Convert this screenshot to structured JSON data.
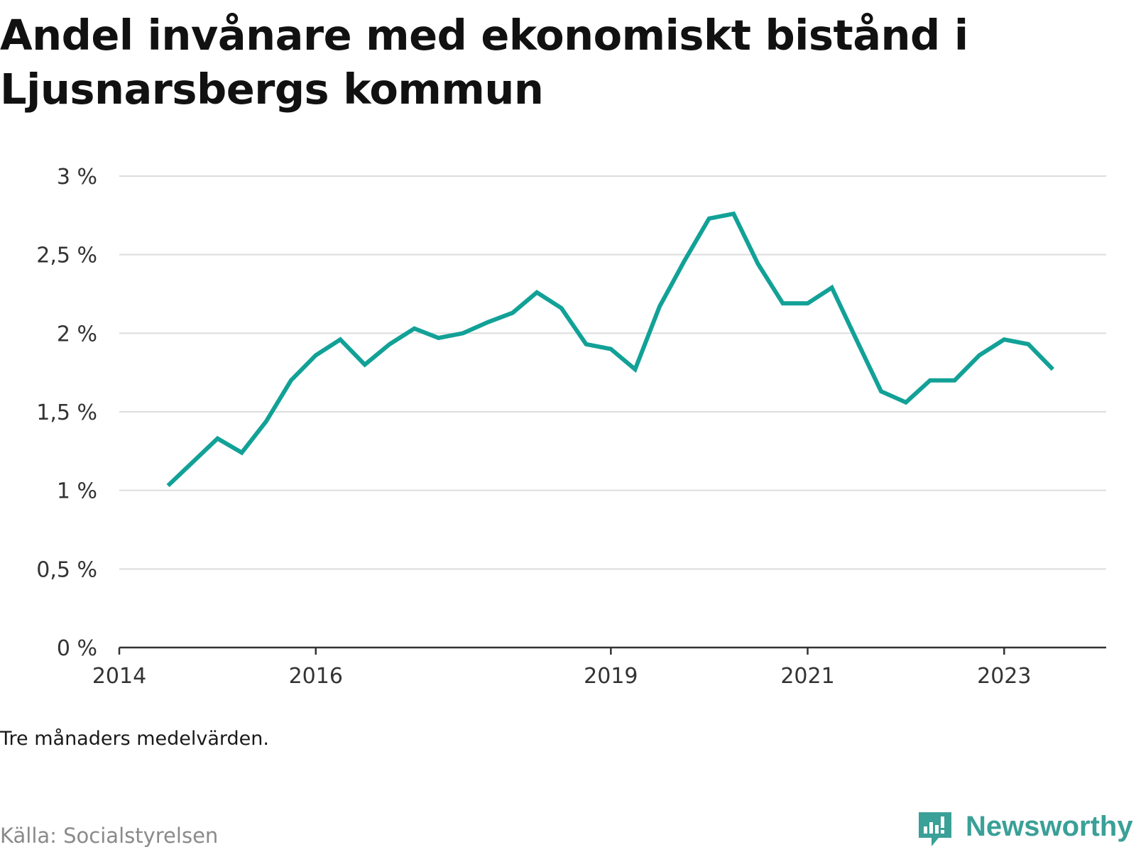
{
  "title": "Andel invånare med ekonomiskt bistånd i Ljusnarsbergs kommun",
  "note": "Tre månaders medelvärden.",
  "source": "Källa: Socialstyrelsen",
  "brand": "Newsworthy",
  "colors": {
    "line": "#12a197",
    "grid": "#dddddd",
    "axis": "#333333",
    "brand": "#3aa098"
  },
  "chart_data": {
    "type": "line",
    "title": "Andel invånare med ekonomiskt bistånd i Ljusnarsbergs kommun",
    "xlabel": "",
    "ylabel": "",
    "ylim": [
      0,
      3
    ],
    "xlim": [
      "2014-01-01",
      "2024-01-15"
    ],
    "grid": true,
    "legend": "none",
    "y_ticks": [
      {
        "value": 0,
        "label": "0 %"
      },
      {
        "value": 0.5,
        "label": "0,5 %"
      },
      {
        "value": 1,
        "label": "1 %"
      },
      {
        "value": 1.5,
        "label": "1,5 %"
      },
      {
        "value": 2,
        "label": "2 %"
      },
      {
        "value": 2.5,
        "label": "2,5 %"
      },
      {
        "value": 3,
        "label": "3 %"
      }
    ],
    "x_ticks": [
      {
        "value": "2014-01-01",
        "label": "2014"
      },
      {
        "value": "2016-01-01",
        "label": "2016"
      },
      {
        "value": "2019-01-01",
        "label": "2019"
      },
      {
        "value": "2021-01-01",
        "label": "2021"
      },
      {
        "value": "2023-01-01",
        "label": "2023"
      }
    ],
    "series": [
      {
        "x": [
          "2014-07-01",
          "2014-10-01",
          "2015-01-01",
          "2015-04-01",
          "2015-07-01",
          "2015-10-01",
          "2016-01-01",
          "2016-04-01",
          "2016-07-01",
          "2016-10-01",
          "2017-01-01",
          "2017-04-01",
          "2017-07-01",
          "2017-10-01",
          "2018-01-01",
          "2018-04-01",
          "2018-07-01",
          "2018-10-01",
          "2019-01-01",
          "2019-04-01",
          "2019-07-01",
          "2019-10-01",
          "2020-01-01",
          "2020-04-01",
          "2020-07-01",
          "2020-10-01",
          "2021-01-01",
          "2021-04-01",
          "2021-07-01",
          "2021-10-01",
          "2022-01-01",
          "2022-04-01",
          "2022-07-01",
          "2022-10-01",
          "2023-01-01",
          "2023-04-01",
          "2023-07-01"
        ],
        "values": [
          1.03,
          1.18,
          1.33,
          1.24,
          1.44,
          1.7,
          1.86,
          1.96,
          1.8,
          1.93,
          2.03,
          1.97,
          2.0,
          2.07,
          2.13,
          2.26,
          2.16,
          1.93,
          1.9,
          1.77,
          2.17,
          2.46,
          2.73,
          2.76,
          2.44,
          2.19,
          2.19,
          2.29,
          1.96,
          1.63,
          1.56,
          1.7,
          1.7,
          1.86,
          1.96,
          1.93,
          1.77
        ]
      }
    ]
  }
}
